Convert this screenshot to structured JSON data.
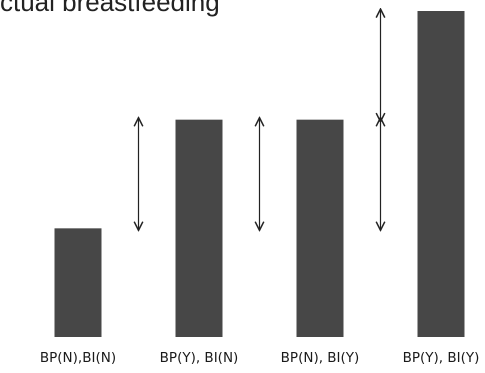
{
  "title_fragment": "ctual breastfeeding",
  "colors": {
    "bar": "#474747",
    "arrow": "#222222",
    "background": "#ffffff"
  },
  "chart_data": {
    "type": "bar",
    "categories": [
      "BP(N),BI(N)",
      "BP(Y), BI(N)",
      "BP(N), BI(Y)",
      "BP(Y), BI(Y)"
    ],
    "values": [
      1,
      2,
      2,
      3
    ],
    "ylim": [
      0,
      3
    ],
    "grid": false,
    "annotations": [
      {
        "type": "double-arrow",
        "between": [
          "BP(N),BI(N)",
          "BP(Y), BI(N)"
        ],
        "from": 1,
        "to": 2
      },
      {
        "type": "double-arrow",
        "between": [
          "BP(Y), BI(N)",
          "BP(N), BI(Y)"
        ],
        "from": 1,
        "to": 2
      },
      {
        "type": "double-arrow",
        "between": [
          "BP(N), BI(Y)",
          "BP(Y), BI(Y)"
        ],
        "from": 1,
        "to": 2
      },
      {
        "type": "double-arrow",
        "between": [
          "BP(N), BI(Y)",
          "BP(Y), BI(Y)"
        ],
        "from": 2,
        "to": 3
      }
    ]
  }
}
